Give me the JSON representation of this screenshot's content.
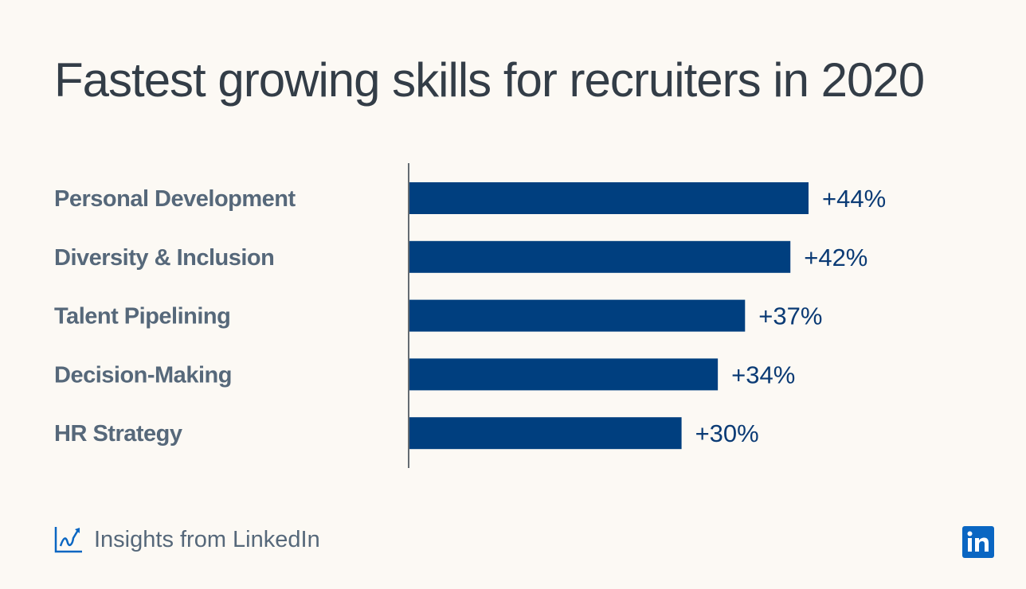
{
  "chart_data": {
    "type": "bar",
    "orientation": "horizontal",
    "title": "Fastest growing skills for recruiters in 2020",
    "categories": [
      "Personal Development",
      "Diversity & Inclusion",
      "Talent Pipelining",
      "Decision-Making",
      "HR Strategy"
    ],
    "values": [
      44,
      42,
      37,
      34,
      30
    ],
    "data_labels": [
      "+44%",
      "+42%",
      "+37%",
      "+34%",
      "+30%"
    ],
    "unit": "%",
    "xlim": [
      0,
      50
    ],
    "grid": false,
    "bar_color": "#003f7f"
  },
  "footer": {
    "text": "Insights from LinkedIn",
    "icon": "trend-chart-icon",
    "logo": "in"
  },
  "colors": {
    "background": "#fcf9f4",
    "title": "#333d47",
    "labels": "#56687a",
    "brand": "#0a66c2"
  }
}
